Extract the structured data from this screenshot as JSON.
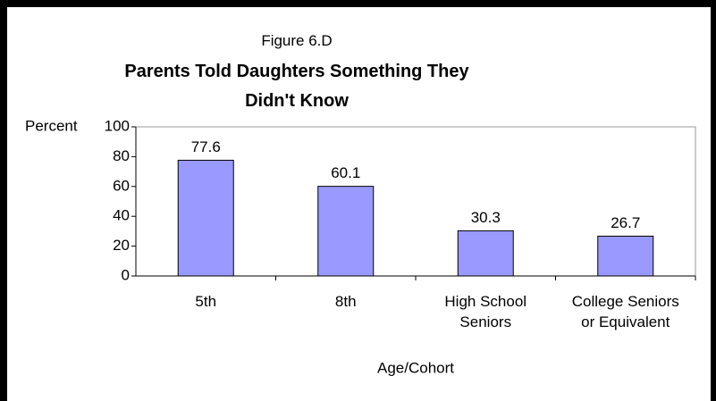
{
  "chart_data": {
    "type": "bar",
    "subtitle": "Figure 6.D",
    "title": "Parents Told Daughters Something They Didn't Know",
    "y_label": "Percent",
    "x_label": "Age/Cohort",
    "categories": [
      "5th",
      "8th",
      "High School Seniors",
      "College Seniors or Equivalent"
    ],
    "values": [
      77.6,
      60.1,
      30.3,
      26.7
    ],
    "color": "#9999ff",
    "ylim": [
      0,
      100
    ],
    "yticks": [
      0,
      20,
      40,
      60,
      80,
      100
    ],
    "grid": false
  }
}
